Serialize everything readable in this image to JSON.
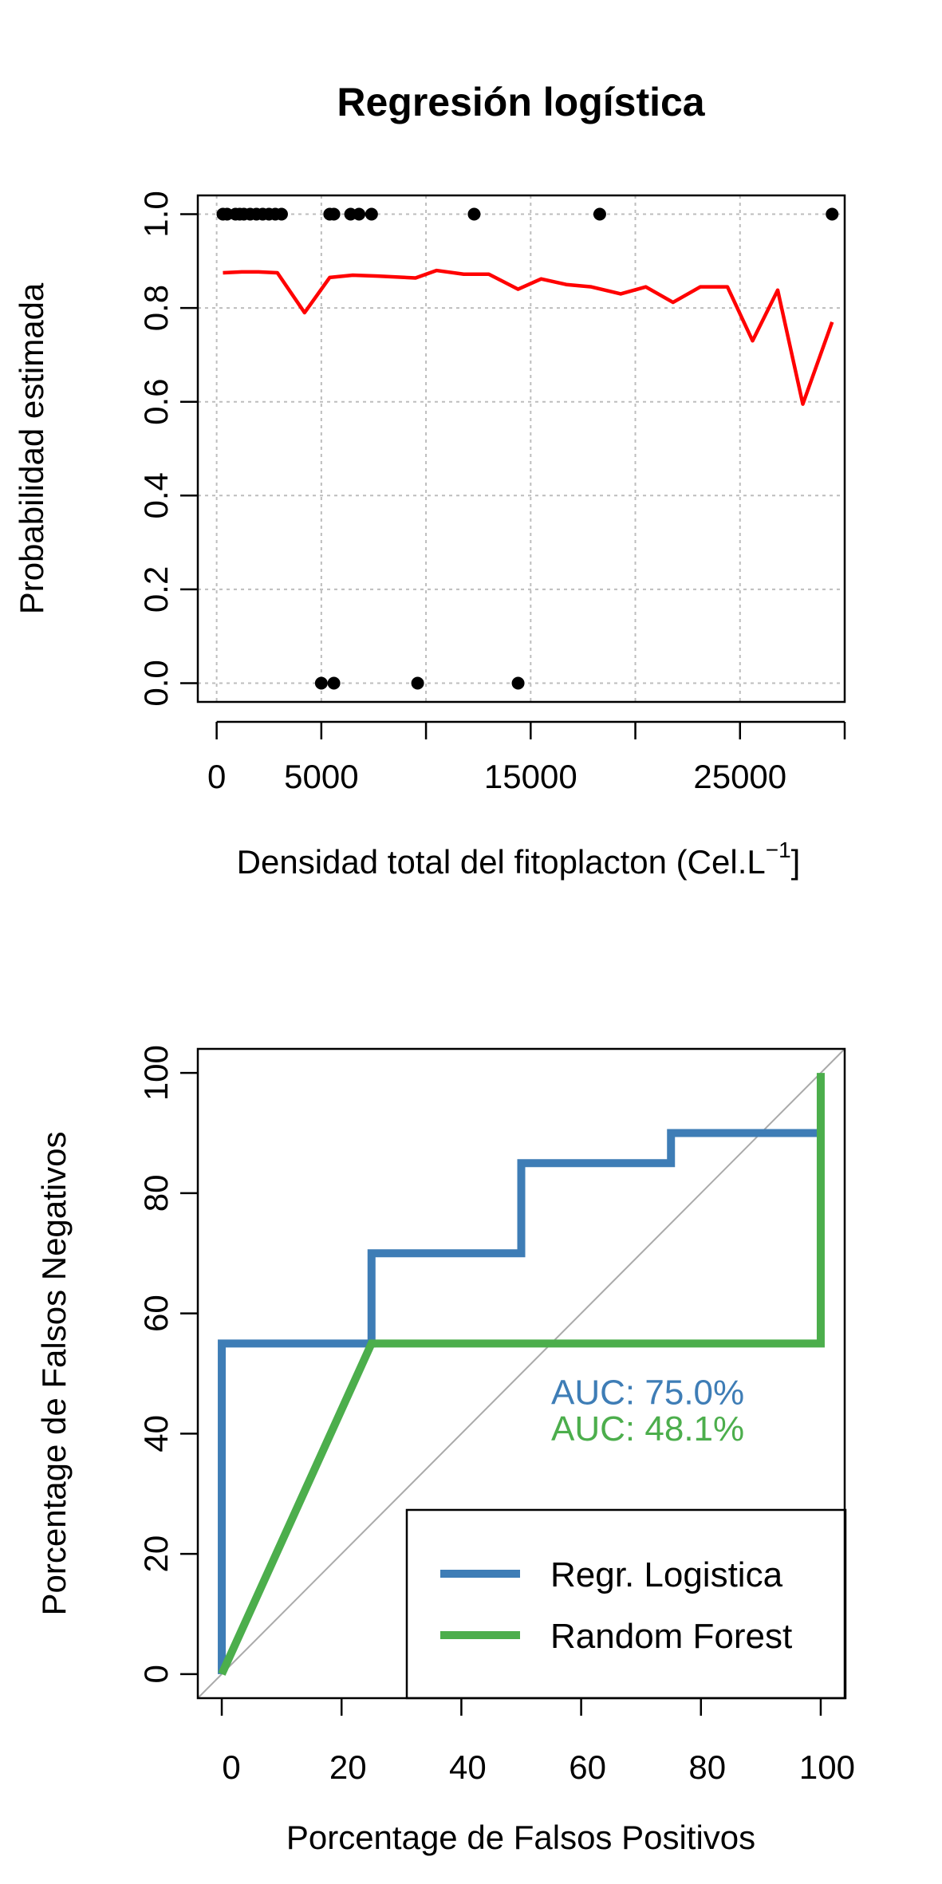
{
  "chart_data": [
    {
      "type": "scatter",
      "title": "Regresión logística",
      "xlabel_main": "Densidad total del fitoplacton (Cel.L",
      "xlabel_sup": "−1",
      "xlabel_end": "]",
      "ylabel": "Probabilidad estimada",
      "xlim": [
        -900,
        30000
      ],
      "ylim": [
        -0.04,
        1.04
      ],
      "xticks": [
        0,
        5000,
        15000,
        25000
      ],
      "xtick_labels": [
        "0",
        "5000",
        "15000",
        "25000"
      ],
      "xticks_unlabeled": [
        10000,
        20000,
        30000
      ],
      "yticks": [
        0.0,
        0.2,
        0.4,
        0.6,
        0.8,
        1.0
      ],
      "ytick_labels": [
        "0.0",
        "0.2",
        "0.4",
        "0.6",
        "0.8",
        "1.0"
      ],
      "grid": true,
      "series": [
        {
          "kind": "points",
          "color": "#000000",
          "x": [
            300,
            500,
            900,
            1100,
            1300,
            1600,
            1900,
            2200,
            2500,
            2800,
            3100,
            5400,
            5600,
            6400,
            6800,
            7400,
            12300,
            18300,
            29400,
            5000,
            5600,
            9600,
            14400
          ],
          "y": [
            1,
            1,
            1,
            1,
            1,
            1,
            1,
            1,
            1,
            1,
            1,
            1,
            1,
            1,
            1,
            1,
            1,
            1,
            1,
            0,
            0,
            0,
            0
          ]
        },
        {
          "kind": "line",
          "color": "#ff0000",
          "x": [
            300,
            1200,
            2000,
            2900,
            4200,
            5400,
            6500,
            7700,
            9500,
            10500,
            11800,
            13000,
            14400,
            15500,
            16700,
            17900,
            19300,
            20500,
            21800,
            23100,
            24400,
            25600,
            26800,
            28000,
            29400
          ],
          "y": [
            0.875,
            0.877,
            0.877,
            0.875,
            0.79,
            0.865,
            0.87,
            0.868,
            0.864,
            0.88,
            0.872,
            0.872,
            0.84,
            0.862,
            0.85,
            0.845,
            0.83,
            0.845,
            0.812,
            0.845,
            0.845,
            0.73,
            0.838,
            0.595,
            0.77
          ]
        }
      ]
    },
    {
      "type": "line",
      "xlabel": "Porcentage de Falsos Positivos",
      "ylabel": "Porcentage de Falsos Negativos",
      "xlim": [
        -4,
        104
      ],
      "ylim": [
        -4,
        104
      ],
      "xticks": [
        0,
        20,
        40,
        60,
        80,
        100
      ],
      "xtick_labels": [
        "0",
        "20",
        "40",
        "60",
        "80",
        "100"
      ],
      "yticks": [
        0,
        20,
        40,
        60,
        80,
        100
      ],
      "ytick_labels": [
        "0",
        "20",
        "40",
        "60",
        "80",
        "100"
      ],
      "diagonal": {
        "from": [
          -4,
          -4
        ],
        "to": [
          104,
          104
        ],
        "color": "#aaaaaa"
      },
      "series": [
        {
          "name": "Regr. Logistica",
          "color": "#3e7db6",
          "x": [
            0,
            0,
            25,
            25,
            50,
            50,
            75,
            75,
            100
          ],
          "y": [
            0,
            55,
            55,
            70,
            70,
            85,
            85,
            90,
            90
          ]
        },
        {
          "name": "Random Forest",
          "color": "#4cae4c",
          "x": [
            0,
            25,
            100,
            100
          ],
          "y": [
            0,
            55,
            55,
            100
          ]
        }
      ],
      "annotations": [
        {
          "text": "AUC: 75.0%",
          "x": 55,
          "y": 47,
          "color": "#3e7db6"
        },
        {
          "text": "AUC: 48.1%",
          "x": 55,
          "y": 41,
          "color": "#4cae4c"
        }
      ],
      "legend": {
        "position": "bottom-right"
      }
    }
  ]
}
